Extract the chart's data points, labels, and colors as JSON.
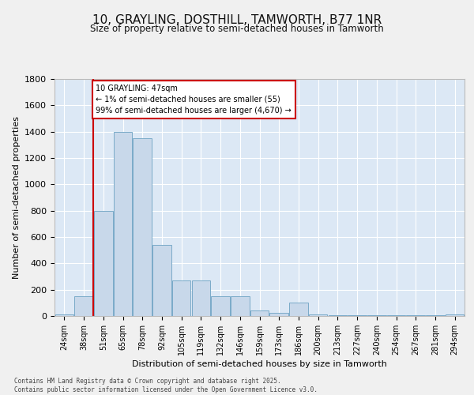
{
  "title": "10, GRAYLING, DOSTHILL, TAMWORTH, B77 1NR",
  "subtitle": "Size of property relative to semi-detached houses in Tamworth",
  "xlabel": "Distribution of semi-detached houses by size in Tamworth",
  "ylabel": "Number of semi-detached properties",
  "categories": [
    "24sqm",
    "38sqm",
    "51sqm",
    "65sqm",
    "78sqm",
    "92sqm",
    "105sqm",
    "119sqm",
    "132sqm",
    "146sqm",
    "159sqm",
    "173sqm",
    "186sqm",
    "200sqm",
    "213sqm",
    "227sqm",
    "240sqm",
    "254sqm",
    "267sqm",
    "281sqm",
    "294sqm"
  ],
  "values": [
    10,
    150,
    800,
    1400,
    1350,
    540,
    270,
    270,
    150,
    150,
    40,
    25,
    100,
    10,
    5,
    5,
    5,
    5,
    5,
    5,
    10
  ],
  "bar_color": "#c8d8ea",
  "bar_edge_color": "#7aaac8",
  "property_sqm": 47,
  "property_label": "10 GRAYLING: 47sqm",
  "pct_smaller": 1,
  "count_smaller": 55,
  "pct_larger": 99,
  "count_larger": 4670,
  "annotation_box_color": "#ffffff",
  "annotation_box_edge": "#cc0000",
  "line_color": "#cc0000",
  "ylim": [
    0,
    1800
  ],
  "yticks": [
    0,
    200,
    400,
    600,
    800,
    1000,
    1200,
    1400,
    1600,
    1800
  ],
  "footer_line1": "Contains HM Land Registry data © Crown copyright and database right 2025.",
  "footer_line2": "Contains public sector information licensed under the Open Government Licence v3.0.",
  "background_color": "#dce8f5",
  "fig_background_color": "#f0f0f0",
  "grid_color": "#ffffff"
}
